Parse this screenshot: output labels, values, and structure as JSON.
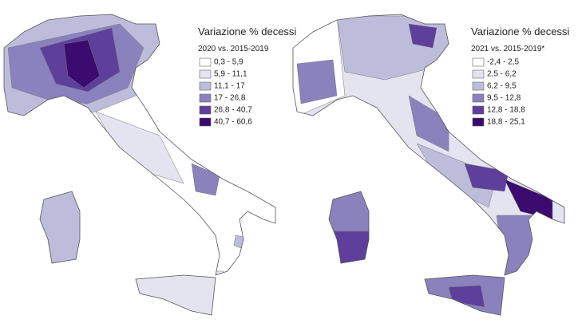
{
  "maps": [
    {
      "title": "Variazione % decessi",
      "subtitle": "2020 vs. 2015-2019",
      "legend": [
        {
          "label": "0,3 - 5,9",
          "color": "#ffffff"
        },
        {
          "label": "5,9 - 11,1",
          "color": "#e4e4f1"
        },
        {
          "label": "11,1 - 17",
          "color": "#bdbddb"
        },
        {
          "label": "17 - 26,8",
          "color": "#8a82bd"
        },
        {
          "label": "26,8 - 40,7",
          "color": "#5e3f9c"
        },
        {
          "label": "40,7 - 60,6",
          "color": "#3b0b6f"
        }
      ]
    },
    {
      "title": "Variazione % decessi",
      "subtitle": "2021 vs. 2015-2019*",
      "legend": [
        {
          "label": "-2,4 - 2,5",
          "color": "#ffffff"
        },
        {
          "label": "2,5 - 6,2",
          "color": "#e4e4f1"
        },
        {
          "label": "6,2 - 9,5",
          "color": "#bdbddb"
        },
        {
          "label": "9,5 - 12,8",
          "color": "#8a82bd"
        },
        {
          "label": "12,8 - 18,8",
          "color": "#5e3f9c"
        },
        {
          "label": "18,8 - 25,1",
          "color": "#3b0b6f"
        }
      ]
    }
  ]
}
